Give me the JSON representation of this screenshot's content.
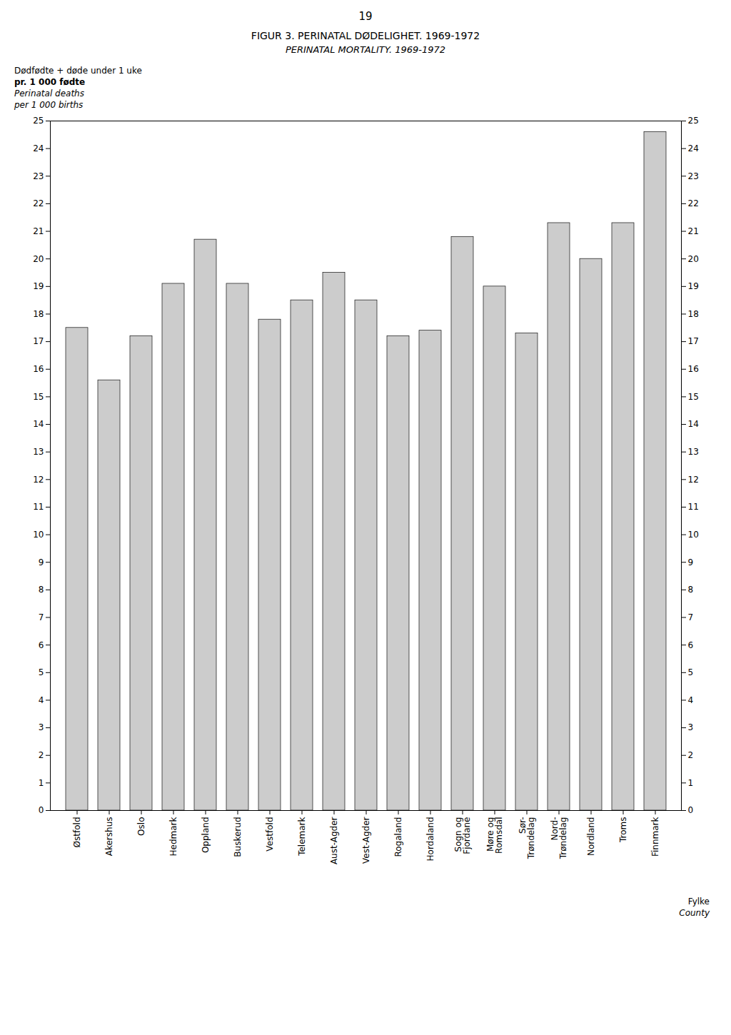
{
  "chart_data": {
    "type": "bar",
    "title": "FIGUR 3.    PERINATAL DØDELIGHET. 1969-1972",
    "subtitle": "PERINATAL MORTALITY.   1969-1972",
    "annotations": [
      "19"
    ],
    "ylabel": [
      "Dødfødte + døde under 1 uke",
      "pr. 1 000 fødte",
      "Perinatal deaths",
      "per 1 000 births"
    ],
    "xlabel": [
      "Fylke",
      "County"
    ],
    "categories": [
      "Østfold",
      "Akershus",
      "Oslo",
      "Hedmark",
      "Oppland",
      "Buskerud",
      "Vestfold",
      "Telemark",
      "Aust-Agder",
      "Vest-Agder",
      "Rogaland",
      "Hordaland",
      "Sogn og\nFjordane",
      "Møre og\nRomsdal",
      "Sør-\nTrøndelag",
      "Nord-\nTrøndelag",
      "Nordland",
      "Troms",
      "Finnmark"
    ],
    "values": [
      17.5,
      15.6,
      17.2,
      19.1,
      20.7,
      19.1,
      17.8,
      18.5,
      19.5,
      18.5,
      17.2,
      17.4,
      20.8,
      19.0,
      17.3,
      21.3,
      20.0,
      21.3,
      24.6
    ],
    "color": "#cccccc",
    "ylim": [
      0,
      25
    ],
    "yticks": [
      0,
      1,
      2,
      3,
      4,
      5,
      6,
      7,
      8,
      9,
      10,
      11,
      12,
      13,
      14,
      15,
      16,
      17,
      18,
      19,
      20,
      21,
      22,
      23,
      24,
      25
    ],
    "grid": false
  }
}
